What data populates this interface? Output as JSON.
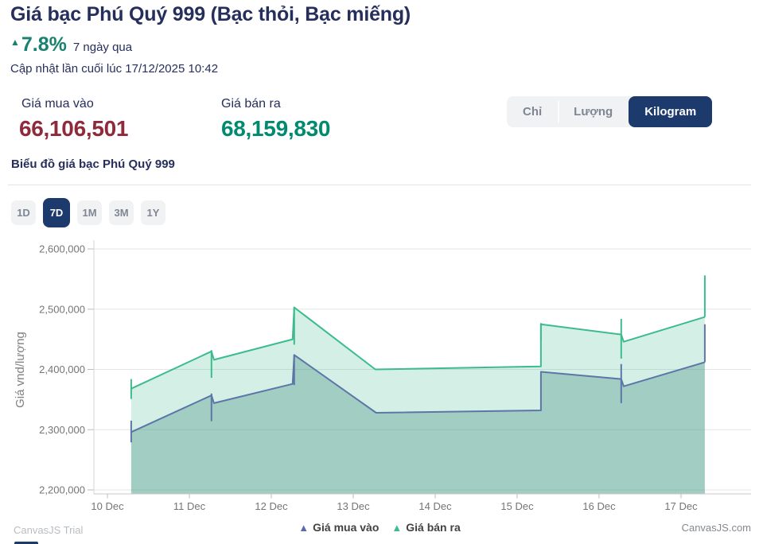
{
  "header": {
    "title": "Giá bạc Phú Quý 999 (Bạc thỏi, Bạc miếng)",
    "change_arrow": "▲",
    "change_pct": "7.8%",
    "change_period": "7 ngày qua",
    "last_updated": "Cập nhật lần cuối lúc 17/12/2025 10:42"
  },
  "prices": {
    "buy_label": "Giá mua vào",
    "buy_value": "66,106,501",
    "sell_label": "Giá bán ra",
    "sell_value": "68,159,830"
  },
  "unit_toggle": {
    "options": [
      "Chỉ",
      "Lượng",
      "Kilogram"
    ],
    "selected": "Kilogram"
  },
  "chart_section_title": "Biểu đồ giá bạc Phú Quý 999",
  "range_buttons": {
    "options": [
      "1D",
      "7D",
      "1M",
      "3M",
      "1Y"
    ],
    "selected": "7D"
  },
  "watermarks": {
    "trial": "CanvasJS Trial",
    "site": "CanvasJS.com"
  },
  "colors": {
    "navy": "#262f5c",
    "accent_navy": "#1d3a6d",
    "green": "#19816f",
    "buy_red": "#8f2a3a",
    "sell_teal": "#008a70",
    "buy_line": "#5b76a7",
    "sell_line": "#3cbc8d"
  },
  "chart_data": {
    "type": "area",
    "title": "",
    "xlabel": "",
    "ylabel": "Giá vnd/lượng",
    "y_ticks": [
      2200000,
      2300000,
      2400000,
      2500000,
      2600000
    ],
    "ylim": [
      2193000,
      2630000
    ],
    "x_labels": [
      "10 Dec",
      "11 Dec",
      "12 Dec",
      "13 Dec",
      "14 Dec",
      "15 Dec",
      "16 Dec",
      "17 Dec"
    ],
    "grid": true,
    "legend_position": "bottom",
    "legend": [
      {
        "label": "Giá mua vào",
        "marker_color": "#5b6bb0"
      },
      {
        "label": "Giá bán ra",
        "marker_color": "#3cbc8d"
      }
    ],
    "series": [
      {
        "name": "Giá mua vào",
        "line_color": "#5b76a7",
        "fill": "rgba(70,125,130,0.35)",
        "points": [
          [
            10.29,
            2296000
          ],
          [
            11.27,
            2357000
          ],
          [
            11.3,
            2344000
          ],
          [
            12.26,
            2376000
          ],
          [
            12.28,
            2424000
          ],
          [
            13.28,
            2328000
          ],
          [
            15.29,
            2332000
          ],
          [
            15.29,
            2396000
          ],
          [
            16.27,
            2384000
          ],
          [
            16.3,
            2372000
          ],
          [
            17.29,
            2412000
          ]
        ],
        "wicks": [
          [
            10.29,
            2279000,
            2315000
          ],
          [
            11.27,
            2314000,
            2360000
          ],
          [
            12.28,
            2374000,
            2424000
          ],
          [
            16.27,
            2344000,
            2409000
          ],
          [
            17.29,
            2412000,
            2475000
          ]
        ]
      },
      {
        "name": "Giá bán ra",
        "line_color": "#3cbc8d",
        "fill": "rgba(60,188,141,0.22)",
        "points": [
          [
            10.29,
            2368000
          ],
          [
            11.27,
            2430000
          ],
          [
            11.3,
            2416000
          ],
          [
            12.26,
            2450000
          ],
          [
            12.28,
            2503000
          ],
          [
            13.27,
            2400000
          ],
          [
            15.29,
            2405000
          ],
          [
            15.29,
            2475000
          ],
          [
            16.27,
            2458000
          ],
          [
            16.3,
            2446000
          ],
          [
            17.29,
            2487000
          ]
        ],
        "wicks": [
          [
            10.29,
            2351000,
            2384000
          ],
          [
            11.27,
            2386000,
            2432000
          ],
          [
            12.28,
            2441000,
            2503000
          ],
          [
            15.29,
            2448000,
            2477000
          ],
          [
            16.27,
            2418000,
            2484000
          ],
          [
            17.29,
            2487000,
            2556000
          ]
        ]
      }
    ]
  }
}
